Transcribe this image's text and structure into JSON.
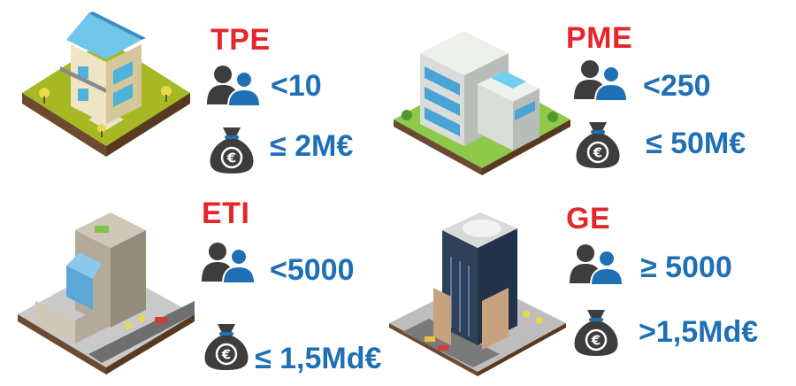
{
  "colors": {
    "title": "#e5262b",
    "value": "#1f6fb5",
    "icon_dark": "#3d3d3d",
    "icon_blue": "#1f6fb5"
  },
  "icons": {
    "people": "people-icon",
    "money": "money-bag-euro-icon"
  },
  "categories": [
    {
      "title": "TPE",
      "employees": "<10",
      "revenue": "≤ 2M€"
    },
    {
      "title": "PME",
      "employees": "<250",
      "revenue": "≤ 50M€"
    },
    {
      "title": "ETI",
      "employees": "<5000",
      "revenue": "≤ 1,5Md€"
    },
    {
      "title": "GE",
      "employees": "≥ 5000",
      "revenue": ">1,5Md€"
    }
  ]
}
